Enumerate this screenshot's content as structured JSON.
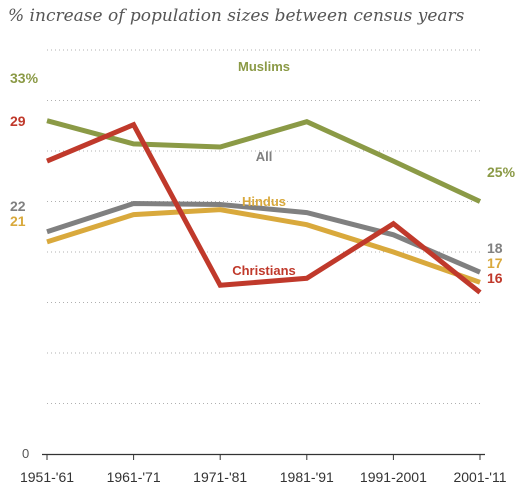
{
  "chart_data": {
    "type": "line",
    "title": "% increase of population sizes between census years",
    "categories": [
      "1951-'61",
      "1961-'71",
      "1971-'81",
      "1981-'91",
      "1991-2001",
      "2001-'11"
    ],
    "xlabel": "",
    "ylabel": "",
    "ylim": [
      0,
      40
    ],
    "y_tick_labels": [
      "0"
    ],
    "grid": true,
    "series": [
      {
        "name": "Muslims",
        "color": "#8b9a46",
        "values": [
          33,
          30.7,
          30.4,
          32.9,
          29,
          25
        ],
        "start_label": "33%",
        "end_label": "25%"
      },
      {
        "name": "All",
        "color": "#808080",
        "values": [
          22,
          24.8,
          24.7,
          23.9,
          21.7,
          18
        ],
        "start_label": "22",
        "end_label": "18"
      },
      {
        "name": "Hindus",
        "color": "#d9a93c",
        "values": [
          21,
          23.7,
          24.2,
          22.7,
          20,
          17
        ],
        "start_label": "21",
        "end_label": "17"
      },
      {
        "name": "Christians",
        "color": "#c0392b",
        "values": [
          29,
          32.6,
          16.7,
          17.4,
          22.8,
          16
        ],
        "start_label": "29",
        "end_label": "16"
      }
    ]
  }
}
